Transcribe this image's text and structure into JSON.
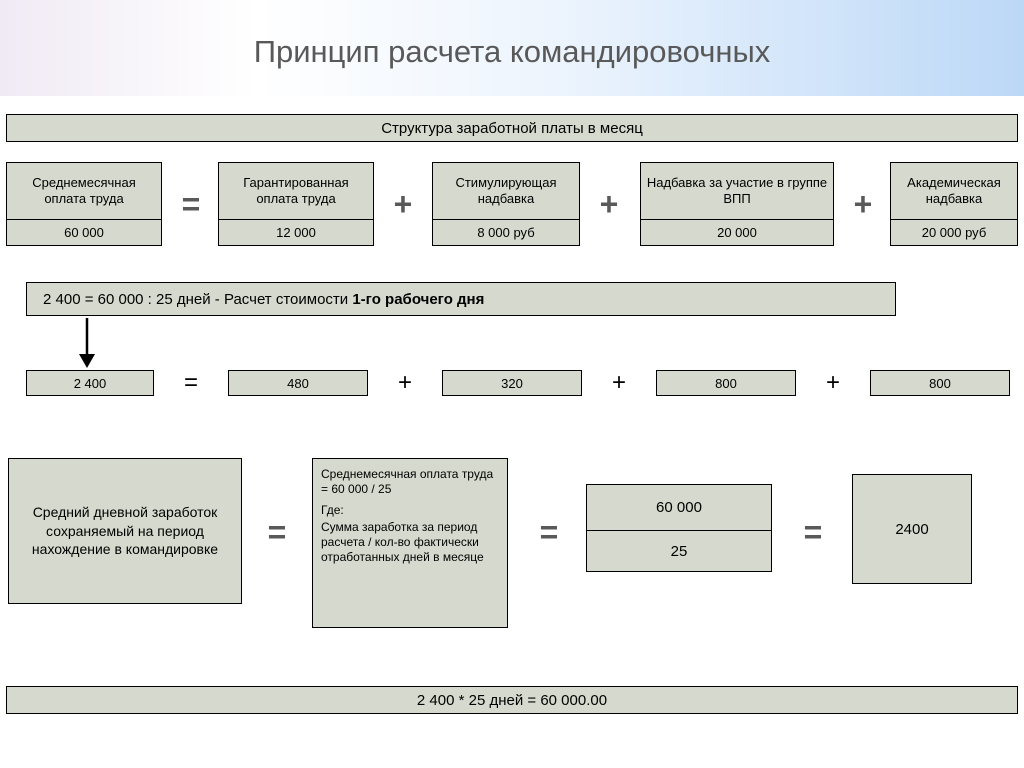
{
  "title": "Принцип расчета командировочных",
  "bars": {
    "salary_structure": "Структура заработной платы в месяц",
    "day_cost": "2 400 = 60 000 : 25 дней  - Расчет стоимости 1-го рабочего дня",
    "final": "2 400 * 25 дней = 60 000.00"
  },
  "components": {
    "avg": {
      "label": "Среднемесячная оплата труда",
      "value": "60 000"
    },
    "guar": {
      "label": "Гарантированная оплата труда",
      "value": "12 000"
    },
    "stim": {
      "label": "Стимулирующая надбавка",
      "value": "8 000 руб"
    },
    "vpp": {
      "label": "Надбавка за участие в группе ВПП",
      "value": "20 000"
    },
    "acad": {
      "label": "Академическая надбавка",
      "value": "20 000 руб"
    }
  },
  "row2": {
    "v1": "2 400",
    "v2": "480",
    "v3": "320",
    "v4": "800",
    "v5": "800"
  },
  "bottom": {
    "text_left": "Средний дневной заработок сохраняемый на период нахождение в командировке",
    "formula_top": "Среднемесячная оплата труда = 60 000 / 25",
    "formula_mid": "Где:",
    "formula_bot": "Сумма заработка за период расчета / кол-во фактически отработанных дней в месяце",
    "frac_top": "60 000",
    "frac_bot": "25",
    "result": "2400"
  },
  "ops": {
    "eq": "=",
    "plus": "+"
  },
  "colors": {
    "box_bg": "#d6dace",
    "border": "#000000",
    "title": "#595959"
  }
}
